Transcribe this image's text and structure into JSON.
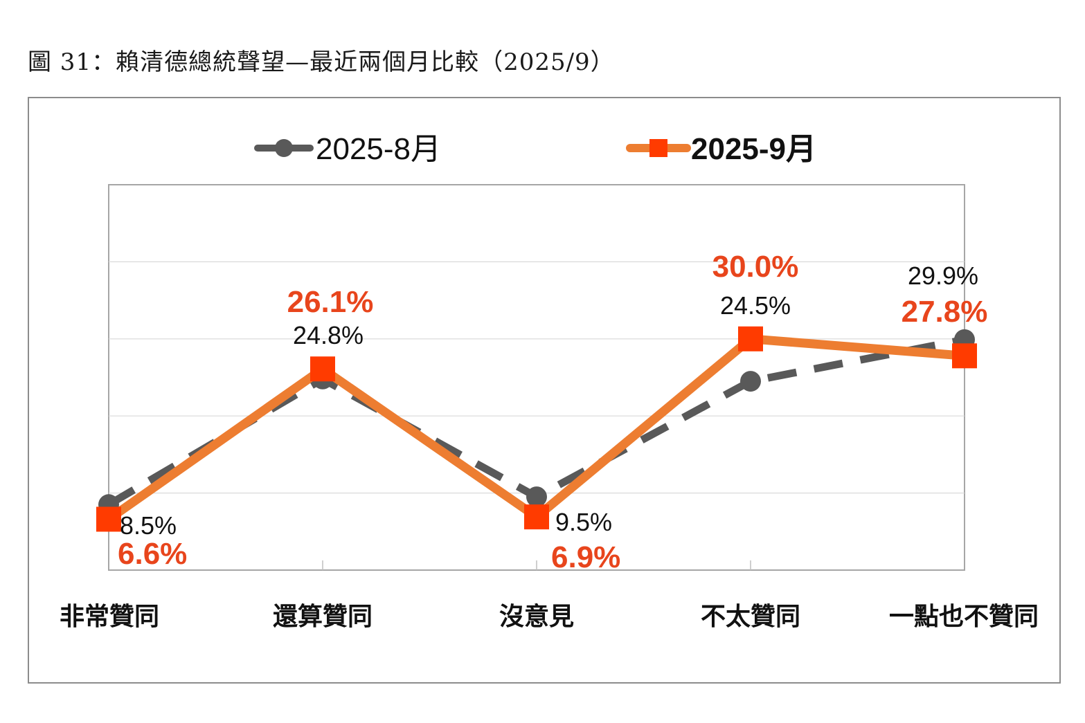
{
  "caption": "圖 31：賴清德總統聲望—最近兩個月比較（2025/9）",
  "chart_data": {
    "type": "line",
    "categories": [
      "非常贊同",
      "還算贊同",
      "沒意見",
      "不太贊同",
      "一點也不贊同"
    ],
    "ylim": [
      0,
      50
    ],
    "grid": true,
    "legend_position": "top",
    "series": [
      {
        "name": "2025-8月",
        "values": [
          8.5,
          24.8,
          9.5,
          24.5,
          29.9
        ],
        "labels": [
          "8.5%",
          "24.8%",
          "9.5%",
          "24.5%",
          "29.9%"
        ],
        "color": "#595959",
        "line_style": "dashed",
        "marker": "circle"
      },
      {
        "name": "2025-9月",
        "values": [
          6.6,
          26.1,
          6.9,
          30.0,
          27.8
        ],
        "labels": [
          "6.6%",
          "26.1%",
          "6.9%",
          "30.0%",
          "27.8%"
        ],
        "color": "#ed7d31",
        "marker_color": "#ff3b00",
        "line_style": "solid",
        "marker": "square"
      }
    ]
  }
}
